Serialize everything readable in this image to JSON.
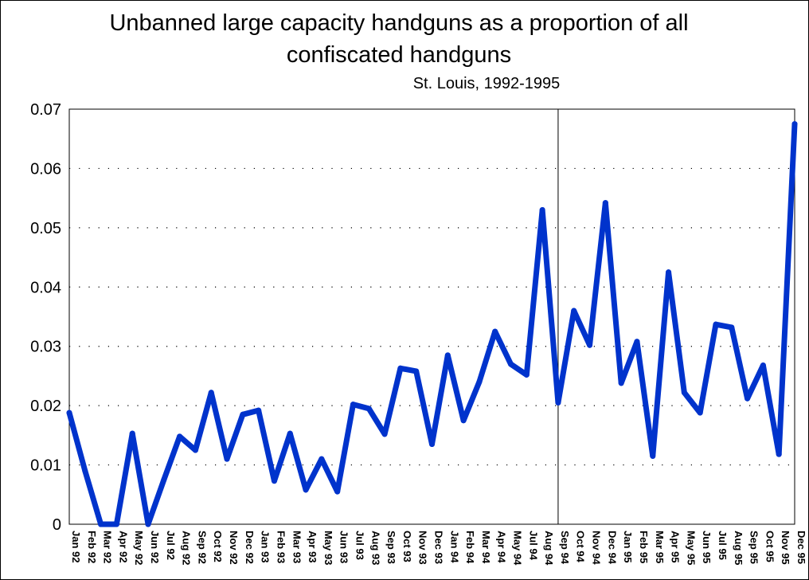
{
  "chart_data": {
    "type": "line",
    "title": "Unbanned large capacity handguns as a proportion of all confiscated handguns",
    "title_lines": [
      "Unbanned large capacity handguns as a proportion of all",
      "confiscated handguns"
    ],
    "subtitle": "St. Louis, 1992-1995",
    "xlabel": "",
    "ylabel": "",
    "ylim": [
      0,
      0.07
    ],
    "yticks": [
      "0",
      "0.01",
      "0.02",
      "0.03",
      "0.04",
      "0.05",
      "0.06",
      "0.07"
    ],
    "grid": "horizontal dotted",
    "reference_line_category": "Sep 94",
    "line_color": "#0033cc",
    "categories": [
      "Jan 92",
      "Feb 92",
      "Mar 92",
      "Apr 92",
      "May 92",
      "Jun 92",
      "Jul 92",
      "Aug 92",
      "Sep 92",
      "Oct 92",
      "Nov 92",
      "Dec 92",
      "Jan 93",
      "Feb 93",
      "Mar 93",
      "Apr 93",
      "May 93",
      "Jun 93",
      "Jul 93",
      "Aug 93",
      "Sep 93",
      "Oct 93",
      "Nov 93",
      "Dec 93",
      "Jan 94",
      "Feb 94",
      "Mar 94",
      "Apr 94",
      "May 94",
      "Jul 94",
      "Aug 94",
      "Sep 94",
      "Oct 94",
      "Nov 94",
      "Dec 94",
      "Jan 95",
      "Feb 95",
      "Mar 95",
      "Apr 95",
      "May 95",
      "Jun 95",
      "Jul 95",
      "Aug 95",
      "Sep 95",
      "Oct 95",
      "Nov 95",
      "Dec 95"
    ],
    "values": [
      0.0188,
      0.009,
      0.0,
      0.0,
      0.0153,
      0.0,
      0.0075,
      0.0148,
      0.0125,
      0.0222,
      0.011,
      0.0185,
      0.0192,
      0.0073,
      0.0153,
      0.0058,
      0.011,
      0.0055,
      0.0202,
      0.0195,
      0.0152,
      0.0263,
      0.0258,
      0.0135,
      0.0285,
      0.0175,
      0.024,
      0.0325,
      0.027,
      0.0252,
      0.053,
      0.0205,
      0.036,
      0.0302,
      0.0542,
      0.0238,
      0.0308,
      0.0115,
      0.0425,
      0.0222,
      0.0188,
      0.0337,
      0.0332,
      0.0212,
      0.0268,
      0.0118,
      0.0675
    ]
  }
}
